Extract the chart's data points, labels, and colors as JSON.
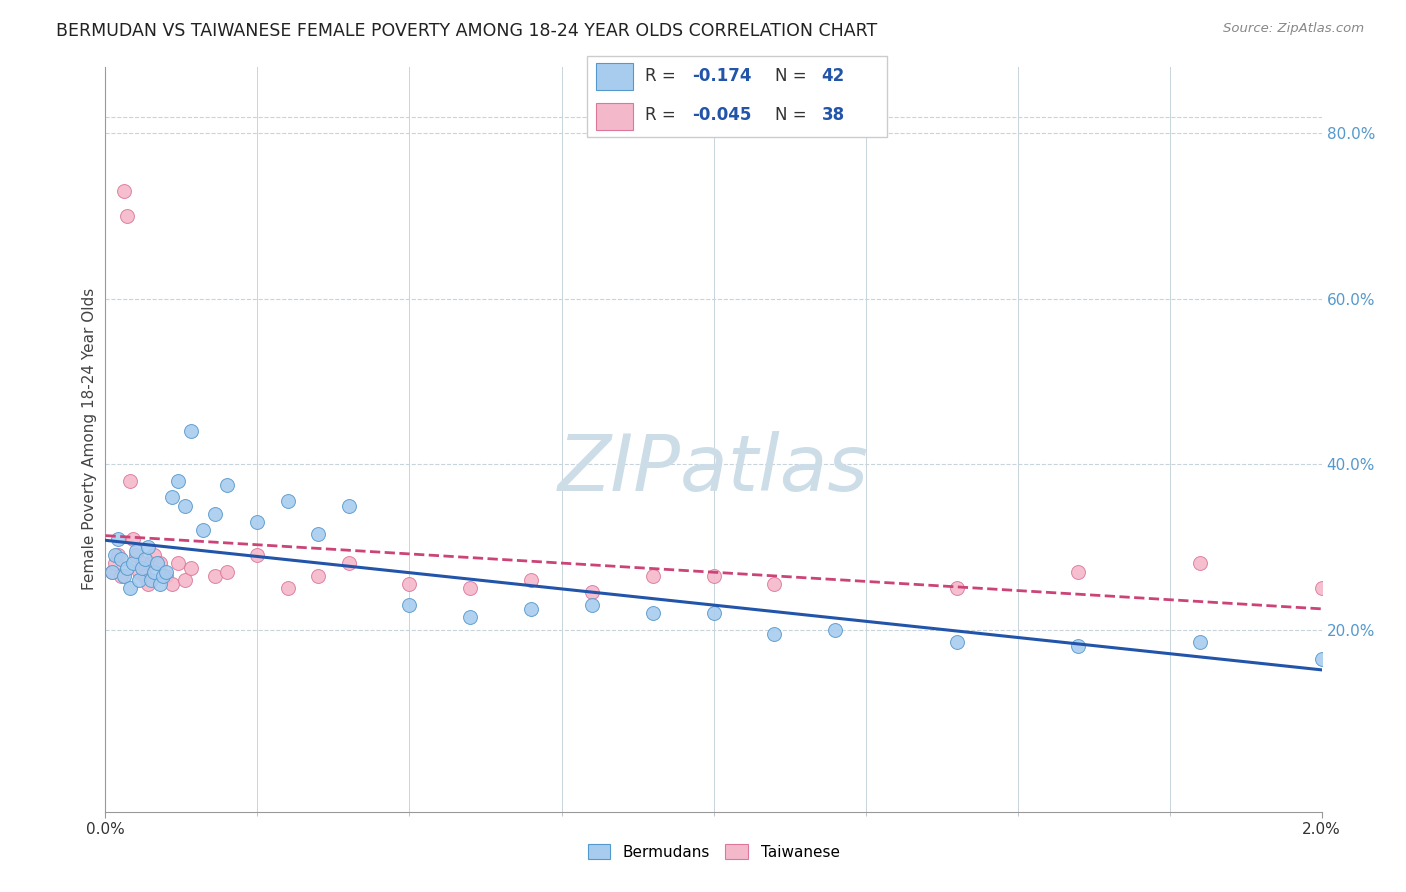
{
  "title": "BERMUDAN VS TAIWANESE FEMALE POVERTY AMONG 18-24 YEAR OLDS CORRELATION CHART",
  "source": "Source: ZipAtlas.com",
  "ylabel": "Female Poverty Among 18-24 Year Olds",
  "r_blue": -0.174,
  "n_blue": 42,
  "r_pink": -0.045,
  "n_pink": 38,
  "blue_color": "#a8ccee",
  "blue_edge_color": "#5599cc",
  "blue_line_color": "#2255aa",
  "pink_color": "#f4b8cb",
  "pink_edge_color": "#dd7799",
  "pink_line_color": "#cc4477",
  "watermark_color": "#ccdde8",
  "grid_color": "#c8d4dc",
  "right_tick_color": "#5599cc",
  "xlim": [
    0.0,
    0.02
  ],
  "ylim": [
    -0.02,
    0.88
  ],
  "ytick_vals": [
    0.2,
    0.4,
    0.6,
    0.8
  ],
  "blue_x": [
    0.0001,
    0.00015,
    0.0002,
    0.00025,
    0.0003,
    0.00035,
    0.0004,
    0.00045,
    0.0005,
    0.00055,
    0.0006,
    0.00065,
    0.0007,
    0.00075,
    0.0008,
    0.00085,
    0.0009,
    0.00095,
    0.001,
    0.0011,
    0.0012,
    0.0013,
    0.0014,
    0.0016,
    0.0018,
    0.002,
    0.0025,
    0.003,
    0.0035,
    0.004,
    0.005,
    0.006,
    0.007,
    0.008,
    0.009,
    0.01,
    0.011,
    0.012,
    0.014,
    0.016,
    0.018,
    0.02
  ],
  "blue_y": [
    0.27,
    0.29,
    0.31,
    0.285,
    0.265,
    0.275,
    0.25,
    0.28,
    0.295,
    0.26,
    0.275,
    0.285,
    0.3,
    0.26,
    0.27,
    0.28,
    0.255,
    0.265,
    0.27,
    0.36,
    0.38,
    0.35,
    0.44,
    0.32,
    0.34,
    0.375,
    0.33,
    0.355,
    0.315,
    0.35,
    0.23,
    0.215,
    0.225,
    0.23,
    0.22,
    0.22,
    0.195,
    0.2,
    0.185,
    0.18,
    0.185,
    0.165
  ],
  "pink_x": [
    0.0001,
    0.00015,
    0.0002,
    0.00025,
    0.0003,
    0.00035,
    0.0004,
    0.00045,
    0.0005,
    0.00055,
    0.0006,
    0.00065,
    0.0007,
    0.00075,
    0.0008,
    0.0009,
    0.001,
    0.0011,
    0.0012,
    0.0013,
    0.0014,
    0.0018,
    0.002,
    0.0025,
    0.003,
    0.0035,
    0.004,
    0.005,
    0.006,
    0.007,
    0.008,
    0.009,
    0.01,
    0.011,
    0.014,
    0.016,
    0.018,
    0.02
  ],
  "pink_y": [
    0.27,
    0.28,
    0.29,
    0.265,
    0.73,
    0.7,
    0.38,
    0.31,
    0.29,
    0.27,
    0.28,
    0.265,
    0.255,
    0.28,
    0.29,
    0.28,
    0.265,
    0.255,
    0.28,
    0.26,
    0.275,
    0.265,
    0.27,
    0.29,
    0.25,
    0.265,
    0.28,
    0.255,
    0.25,
    0.26,
    0.245,
    0.265,
    0.265,
    0.255,
    0.25,
    0.27,
    0.28,
    0.25
  ]
}
